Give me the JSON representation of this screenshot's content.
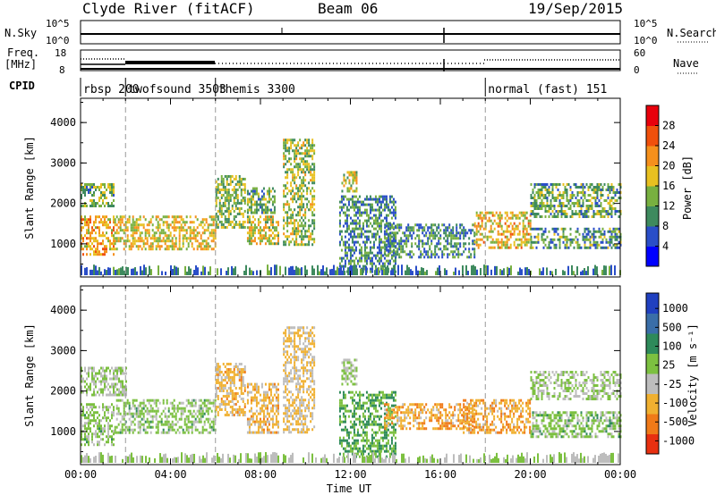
{
  "header": {
    "station": "Clyde River (fitACF)",
    "beam": "Beam 06",
    "date": "19/Sep/2015"
  },
  "noise_panel": {
    "left_label": "N.Sky",
    "right_label": "N.Search",
    "left_ticks": [
      "10^5",
      "10^0"
    ],
    "right_ticks": [
      "10^5",
      "10^0"
    ]
  },
  "freq_panel": {
    "left_label_1": "Freq.",
    "left_label_2": "[MHz]",
    "right_label": "Nave",
    "left_ticks": [
      "18",
      "8"
    ],
    "right_ticks": [
      "60",
      "0"
    ]
  },
  "cpid_panel": {
    "label": "CPID",
    "segments": [
      {
        "name": "rbsp",
        "id": "200",
        "start_hour": 0
      },
      {
        "name": "twofsound",
        "id": "3503",
        "start_hour": 2
      },
      {
        "name": "themis",
        "id": "3300",
        "start_hour": 6
      },
      {
        "name": "normal (fast)",
        "id": "151",
        "start_hour": 18
      }
    ]
  },
  "chart_data": [
    {
      "type": "heatmap",
      "name": "power",
      "ylabel": "Slant Range [km]",
      "ylim": [
        180,
        4600
      ],
      "yticks": [
        "1000",
        "2000",
        "3000",
        "4000"
      ],
      "xlim": [
        0,
        24
      ],
      "colorbar": {
        "label": "Power [dB]",
        "range": [
          0,
          32
        ],
        "ticks": [
          "4",
          "8",
          "12",
          "16",
          "20",
          "24",
          "28"
        ],
        "colors": [
          "#0000ff",
          "#2a4ec8",
          "#3e8a5e",
          "#78b040",
          "#e8c020",
          "#f5901c",
          "#f0500c",
          "#e8000c"
        ]
      },
      "echo_regions": [
        {
          "t": [
            0.0,
            1.5
          ],
          "r": [
            750,
            1700
          ],
          "level": 20
        },
        {
          "t": [
            0.0,
            1.5
          ],
          "r": [
            1950,
            2500
          ],
          "level": 13
        },
        {
          "t": [
            1.5,
            6.0
          ],
          "r": [
            900,
            1700
          ],
          "level": 18
        },
        {
          "t": [
            6.0,
            7.3
          ],
          "r": [
            1400,
            2700
          ],
          "level": 14
        },
        {
          "t": [
            7.4,
            8.8
          ],
          "r": [
            1000,
            1700
          ],
          "level": 17
        },
        {
          "t": [
            7.4,
            8.6
          ],
          "r": [
            1800,
            2400
          ],
          "level": 13
        },
        {
          "t": [
            9.0,
            10.4
          ],
          "r": [
            1000,
            3600
          ],
          "level": 15
        },
        {
          "t": [
            11.6,
            12.3
          ],
          "r": [
            2300,
            2800
          ],
          "level": 17
        },
        {
          "t": [
            11.5,
            14.0
          ],
          "r": [
            300,
            2200
          ],
          "level": 10
        },
        {
          "t": [
            13.5,
            17.5
          ],
          "r": [
            700,
            1500
          ],
          "level": 10
        },
        {
          "t": [
            17.5,
            20.0
          ],
          "r": [
            900,
            1800
          ],
          "level": 19
        },
        {
          "t": [
            20.0,
            24.0
          ],
          "r": [
            1700,
            2500
          ],
          "level": 12
        },
        {
          "t": [
            20.0,
            24.0
          ],
          "r": [
            900,
            1400
          ],
          "level": 11
        }
      ]
    },
    {
      "type": "heatmap",
      "name": "velocity",
      "ylabel": "Slant Range [km]",
      "xlabel": "Time UT",
      "ylim": [
        180,
        4600
      ],
      "yticks": [
        "1000",
        "2000",
        "3000",
        "4000"
      ],
      "xlim": [
        0,
        24
      ],
      "xticks": [
        "00:00",
        "04:00",
        "08:00",
        "12:00",
        "16:00",
        "20:00",
        "00:00"
      ],
      "colorbar": {
        "label": "Velocity [m s⁻¹]",
        "range": [
          -1200,
          1200
        ],
        "ticks": [
          "1000",
          "500",
          "100",
          "25",
          "-25",
          "-100",
          "-500",
          "-1000"
        ],
        "colors": [
          "#2040c0",
          "#3a6ea8",
          "#2e8a5a",
          "#7cc040",
          "#bdbdbd",
          "#f0b030",
          "#f07a18",
          "#e83010"
        ]
      },
      "echo_regions": [
        {
          "t": [
            0.0,
            1.5
          ],
          "r": [
            700,
            1700
          ],
          "level": 100
        },
        {
          "t": [
            0.0,
            2.0
          ],
          "r": [
            1900,
            2600
          ],
          "level": 0
        },
        {
          "t": [
            1.5,
            6.0
          ],
          "r": [
            1000,
            1800
          ],
          "level": 100
        },
        {
          "t": [
            6.0,
            7.3
          ],
          "r": [
            1400,
            2700
          ],
          "level": -400
        },
        {
          "t": [
            7.4,
            8.8
          ],
          "r": [
            1000,
            2200
          ],
          "level": -400
        },
        {
          "t": [
            9.0,
            10.4
          ],
          "r": [
            1000,
            3600
          ],
          "level": -300
        },
        {
          "t": [
            11.6,
            12.3
          ],
          "r": [
            2200,
            2800
          ],
          "level": 0
        },
        {
          "t": [
            11.5,
            14.0
          ],
          "r": [
            400,
            2000
          ],
          "level": 300
        },
        {
          "t": [
            13.5,
            17.5
          ],
          "r": [
            1100,
            1700
          ],
          "level": -500
        },
        {
          "t": [
            17.0,
            20.0
          ],
          "r": [
            1000,
            1800
          ],
          "level": -500
        },
        {
          "t": [
            20.0,
            24.0
          ],
          "r": [
            1800,
            2500
          ],
          "level": 0
        },
        {
          "t": [
            20.0,
            24.0
          ],
          "r": [
            900,
            1500
          ],
          "level": 100
        }
      ]
    }
  ]
}
